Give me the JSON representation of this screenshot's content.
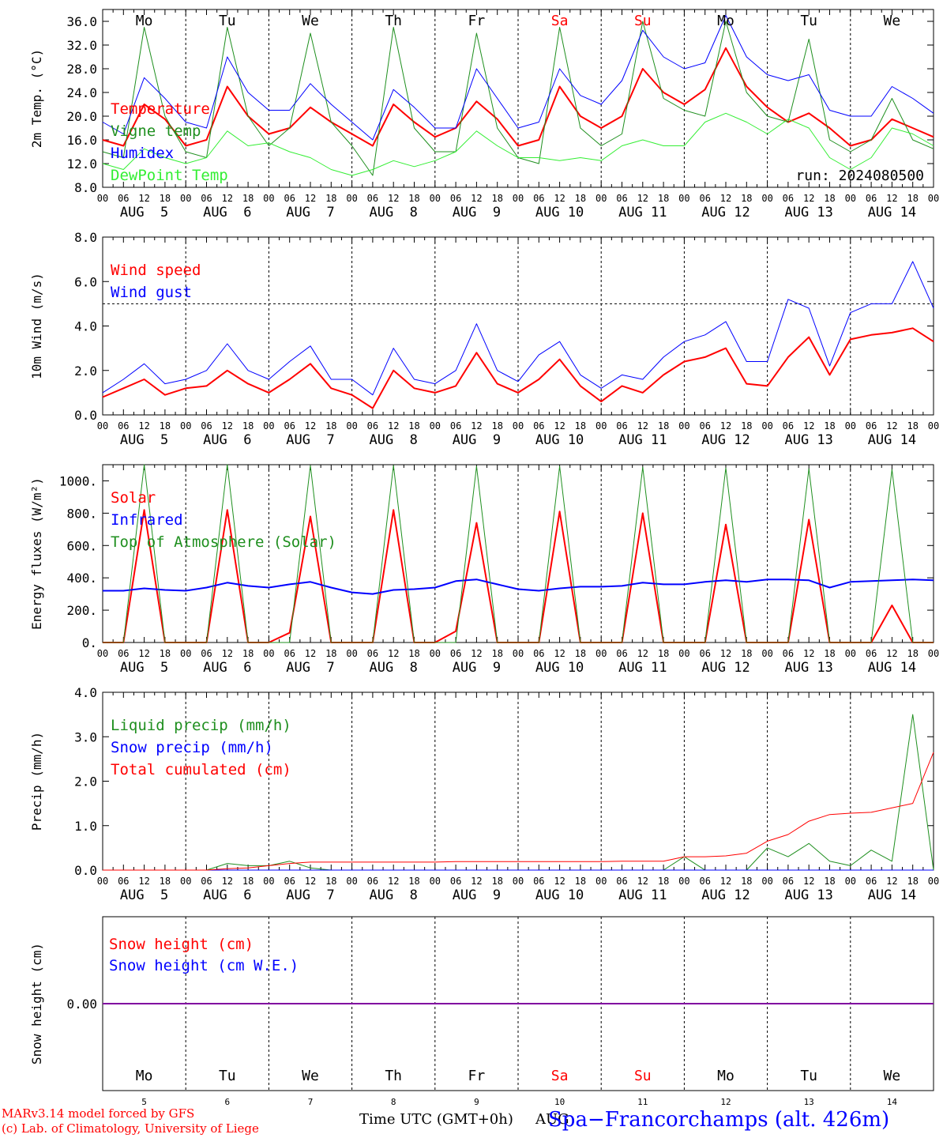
{
  "colors": {
    "red": "#ff0000",
    "green": "#1f8f1f",
    "lightgreen": "#33ee33",
    "blue": "#0000ff",
    "purple": "#8000a0",
    "axis": "#000000"
  },
  "days": [
    {
      "dow": "Mo",
      "date": "AUG  5",
      "num": "5",
      "weekend": false
    },
    {
      "dow": "Tu",
      "date": "AUG  6",
      "num": "6",
      "weekend": false
    },
    {
      "dow": "We",
      "date": "AUG  7",
      "num": "7",
      "weekend": false
    },
    {
      "dow": "Th",
      "date": "AUG  8",
      "num": "8",
      "weekend": false
    },
    {
      "dow": "Fr",
      "date": "AUG  9",
      "num": "9",
      "weekend": false
    },
    {
      "dow": "Sa",
      "date": "AUG 10",
      "num": "10",
      "weekend": true
    },
    {
      "dow": "Su",
      "date": "AUG 11",
      "num": "11",
      "weekend": true
    },
    {
      "dow": "Mo",
      "date": "AUG 12",
      "num": "12",
      "weekend": false
    },
    {
      "dow": "Tu",
      "date": "AUG 13",
      "num": "13",
      "weekend": false
    },
    {
      "dow": "We",
      "date": "AUG 14",
      "num": "14",
      "weekend": false
    }
  ],
  "hour_labels": [
    "00",
    "06",
    "12",
    "18"
  ],
  "chart_data": [
    {
      "type": "line",
      "ylabel": "2m Temp. (°C)",
      "ylim": [
        8,
        38
      ],
      "yticks": [
        8,
        12,
        16,
        20,
        24,
        28,
        32,
        36
      ],
      "ytick_labels": [
        "8.0",
        "12.0",
        "16.0",
        "20.0",
        "24.0",
        "28.0",
        "32.0",
        "36.0"
      ],
      "show_days": true,
      "annotation": "run: 2024080500",
      "x": [
        0,
        0.25,
        0.5,
        0.75,
        1,
        1.25,
        1.5,
        1.75,
        2,
        2.25,
        2.5,
        2.75,
        3,
        3.25,
        3.5,
        3.75,
        4,
        4.25,
        4.5,
        4.75,
        5,
        5.25,
        5.5,
        5.75,
        6,
        6.25,
        6.5,
        6.75,
        7,
        7.25,
        7.5,
        7.75,
        8,
        8.25,
        8.5,
        8.75,
        9,
        9.25,
        9.5,
        9.75,
        10
      ],
      "series": [
        {
          "name": "Temperature",
          "color": "red",
          "width": 2,
          "values": [
            16,
            15,
            22,
            19.5,
            15,
            16,
            25,
            20,
            17,
            18,
            21.5,
            19,
            17,
            15,
            22,
            19,
            16.5,
            18,
            22.5,
            19.5,
            15,
            16,
            25,
            20,
            18,
            20,
            28,
            24,
            22,
            24.5,
            31.5,
            25,
            21.5,
            19,
            20.5,
            18,
            15,
            16,
            19.5,
            18,
            16.5
          ]
        },
        {
          "name": "Vigne temp",
          "color": "green",
          "width": 1,
          "values": [
            14,
            13,
            35,
            20,
            14,
            13,
            35,
            20,
            15,
            18,
            34,
            19,
            15,
            10,
            35,
            18,
            14,
            14,
            34,
            18,
            13,
            12,
            35,
            18,
            15,
            17,
            36,
            23,
            21,
            20,
            36,
            24,
            20,
            19,
            33,
            16,
            14,
            16,
            23,
            16,
            14.5
          ]
        },
        {
          "name": "Humidex",
          "color": "blue",
          "width": 1,
          "values": [
            19,
            17,
            26.5,
            23,
            19,
            18,
            30,
            24,
            21,
            21,
            25.5,
            22,
            19,
            16,
            24.5,
            21.5,
            18,
            18,
            28,
            23,
            18,
            19,
            28,
            23.5,
            22,
            26,
            34.5,
            30,
            28,
            29,
            37,
            30,
            27,
            26,
            27,
            21,
            20,
            20,
            25,
            23,
            20.5
          ]
        },
        {
          "name": "DewPoint Temp",
          "color": "lightgreen",
          "width": 1,
          "values": [
            12,
            11,
            14.5,
            13,
            12,
            13,
            17.5,
            15,
            15.5,
            14,
            13,
            11,
            10,
            11,
            12.5,
            11.5,
            12.5,
            14,
            17.5,
            15,
            13,
            13,
            12.5,
            13,
            12.5,
            15,
            16,
            15,
            15,
            19,
            20.5,
            19,
            17,
            19.5,
            18,
            13,
            11,
            13,
            18,
            17,
            15
          ]
        }
      ]
    },
    {
      "type": "line",
      "ylabel": "10m Wind (m/s)",
      "ylim": [
        0,
        8
      ],
      "yticks": [
        0,
        2,
        4,
        6,
        8
      ],
      "ytick_labels": [
        "0.0",
        "2.0",
        "4.0",
        "6.0",
        "8.0"
      ],
      "show_days": true,
      "reference_line": 5,
      "x": [
        0,
        0.25,
        0.5,
        0.75,
        1,
        1.25,
        1.5,
        1.75,
        2,
        2.25,
        2.5,
        2.75,
        3,
        3.25,
        3.5,
        3.75,
        4,
        4.25,
        4.5,
        4.75,
        5,
        5.25,
        5.5,
        5.75,
        6,
        6.25,
        6.5,
        6.75,
        7,
        7.25,
        7.5,
        7.75,
        8,
        8.25,
        8.5,
        8.75,
        9,
        9.25,
        9.5,
        9.75,
        10
      ],
      "series": [
        {
          "name": "Wind speed",
          "color": "red",
          "width": 2,
          "values": [
            0.8,
            1.2,
            1.6,
            0.9,
            1.2,
            1.3,
            2.0,
            1.4,
            1.0,
            1.6,
            2.3,
            1.2,
            0.9,
            0.3,
            2.0,
            1.2,
            1.0,
            1.3,
            2.8,
            1.4,
            1.0,
            1.6,
            2.5,
            1.3,
            0.6,
            1.3,
            1.0,
            1.8,
            2.4,
            2.6,
            3.0,
            1.4,
            1.3,
            2.6,
            3.5,
            1.8,
            3.4,
            3.6,
            3.7,
            3.9,
            3.3
          ]
        },
        {
          "name": "Wind gust",
          "color": "blue",
          "width": 1,
          "values": [
            1.0,
            1.6,
            2.3,
            1.4,
            1.6,
            2.0,
            3.2,
            2.0,
            1.6,
            2.4,
            3.1,
            1.6,
            1.6,
            0.9,
            3.0,
            1.6,
            1.4,
            2.0,
            4.1,
            2.0,
            1.5,
            2.7,
            3.3,
            1.8,
            1.2,
            1.8,
            1.6,
            2.6,
            3.3,
            3.6,
            4.2,
            2.4,
            2.4,
            5.2,
            4.8,
            2.2,
            4.6,
            5.0,
            5.0,
            6.9,
            4.8
          ]
        }
      ]
    },
    {
      "type": "line",
      "ylabel": "Energy fluxes (W/m²)",
      "ylim": [
        0,
        1100
      ],
      "yticks": [
        0,
        200,
        400,
        600,
        800,
        1000
      ],
      "ytick_labels": [
        "0.",
        "200.",
        "400.",
        "600.",
        "800.",
        "1000."
      ],
      "show_days": true,
      "x": [
        0,
        0.25,
        0.5,
        0.75,
        1,
        1.25,
        1.5,
        1.75,
        2,
        2.25,
        2.5,
        2.75,
        3,
        3.25,
        3.5,
        3.75,
        4,
        4.25,
        4.5,
        4.75,
        5,
        5.25,
        5.5,
        5.75,
        6,
        6.25,
        6.5,
        6.75,
        7,
        7.25,
        7.5,
        7.75,
        8,
        8.25,
        8.5,
        8.75,
        9,
        9.25,
        9.5,
        9.75,
        10
      ],
      "series": [
        {
          "name": "Solar",
          "color": "red",
          "width": 2,
          "values": [
            0,
            0,
            820,
            0,
            0,
            0,
            820,
            0,
            0,
            60,
            780,
            0,
            0,
            0,
            820,
            0,
            0,
            70,
            740,
            0,
            0,
            0,
            810,
            0,
            0,
            0,
            800,
            0,
            0,
            0,
            730,
            0,
            0,
            0,
            760,
            0,
            0,
            0,
            230,
            0,
            0
          ]
        },
        {
          "name": "Infrared",
          "color": "blue",
          "width": 2,
          "values": [
            320,
            320,
            335,
            325,
            320,
            340,
            370,
            350,
            340,
            360,
            375,
            340,
            310,
            300,
            325,
            330,
            340,
            380,
            390,
            360,
            330,
            320,
            335,
            345,
            345,
            350,
            370,
            360,
            360,
            375,
            385,
            375,
            390,
            390,
            385,
            340,
            375,
            380,
            385,
            390,
            385
          ]
        },
        {
          "name": "Top of Atmosphere (Solar)",
          "color": "green",
          "width": 1,
          "values": [
            0,
            0,
            1100,
            0,
            0,
            0,
            1100,
            0,
            0,
            0,
            1095,
            0,
            0,
            0,
            1095,
            0,
            0,
            0,
            1090,
            0,
            0,
            0,
            1090,
            0,
            0,
            0,
            1085,
            0,
            0,
            0,
            1080,
            0,
            0,
            0,
            1075,
            0,
            0,
            0,
            1070,
            0,
            0
          ]
        }
      ]
    },
    {
      "type": "line",
      "ylabel": "Precip (mm/h)",
      "ylim": [
        0,
        4
      ],
      "yticks": [
        0,
        1,
        2,
        3,
        4
      ],
      "ytick_labels": [
        "0.0",
        "1.0",
        "2.0",
        "3.0",
        "4.0"
      ],
      "show_days": true,
      "x": [
        0,
        0.25,
        0.5,
        0.75,
        1,
        1.25,
        1.5,
        1.75,
        2,
        2.25,
        2.5,
        2.75,
        3,
        3.25,
        3.5,
        3.75,
        4,
        4.25,
        4.5,
        4.75,
        5,
        5.25,
        5.5,
        5.75,
        6,
        6.25,
        6.5,
        6.75,
        7,
        7.25,
        7.5,
        7.75,
        8,
        8.25,
        8.5,
        8.75,
        9,
        9.25,
        9.5,
        9.75,
        10
      ],
      "series": [
        {
          "name": "Liquid precip (mm/h)",
          "color": "green",
          "width": 1,
          "values": [
            0,
            0,
            0,
            0,
            0,
            0,
            0.15,
            0.1,
            0.1,
            0.2,
            0.05,
            0,
            0,
            0,
            0,
            0,
            0,
            0,
            0,
            0,
            0,
            0,
            0,
            0,
            0,
            0,
            0,
            0,
            0.3,
            0,
            0,
            0,
            0.5,
            0.3,
            0.6,
            0.2,
            0.1,
            0.45,
            0.2,
            3.5,
            0
          ]
        },
        {
          "name": "Snow precip (mm/h)",
          "color": "blue",
          "width": 1,
          "values": [
            0,
            0,
            0,
            0,
            0,
            0,
            0,
            0,
            0,
            0,
            0,
            0,
            0,
            0,
            0,
            0,
            0,
            0,
            0,
            0,
            0,
            0,
            0,
            0,
            0,
            0,
            0,
            0,
            0,
            0,
            0,
            0,
            0,
            0,
            0,
            0,
            0,
            0,
            0,
            0,
            0
          ]
        },
        {
          "name": "Total cumulated (cm)",
          "color": "red",
          "width": 1,
          "values": [
            0,
            0,
            0,
            0,
            0,
            0,
            0.03,
            0.05,
            0.1,
            0.15,
            0.18,
            0.18,
            0.18,
            0.18,
            0.18,
            0.18,
            0.18,
            0.19,
            0.19,
            0.19,
            0.19,
            0.19,
            0.19,
            0.19,
            0.19,
            0.2,
            0.2,
            0.2,
            0.3,
            0.3,
            0.32,
            0.38,
            0.65,
            0.8,
            1.1,
            1.25,
            1.28,
            1.3,
            1.4,
            1.5,
            2.65
          ]
        }
      ]
    },
    {
      "type": "line",
      "ylabel": "Snow height (cm)",
      "ylim": [
        -1,
        1
      ],
      "yticks": [
        0
      ],
      "ytick_labels": [
        "0.00"
      ],
      "show_days": false,
      "x": [
        0,
        10
      ],
      "series": [
        {
          "name": "Snow height (cm)",
          "color": "red",
          "width": 1,
          "values": [
            0,
            0
          ]
        },
        {
          "name": "Snow height (cm W.E.)",
          "color": "blue",
          "width": 1,
          "values": [
            0,
            0
          ]
        }
      ]
    }
  ],
  "footer": {
    "credit_line1": "MARv3.14 model forced by GFS",
    "credit_line2": "(c) Lab. of Climatology, University of Liege",
    "xlabel": "Time UTC (GMT+0h)",
    "month": "AUG",
    "station": "Spa−Francorchamps (alt. 426m)"
  }
}
